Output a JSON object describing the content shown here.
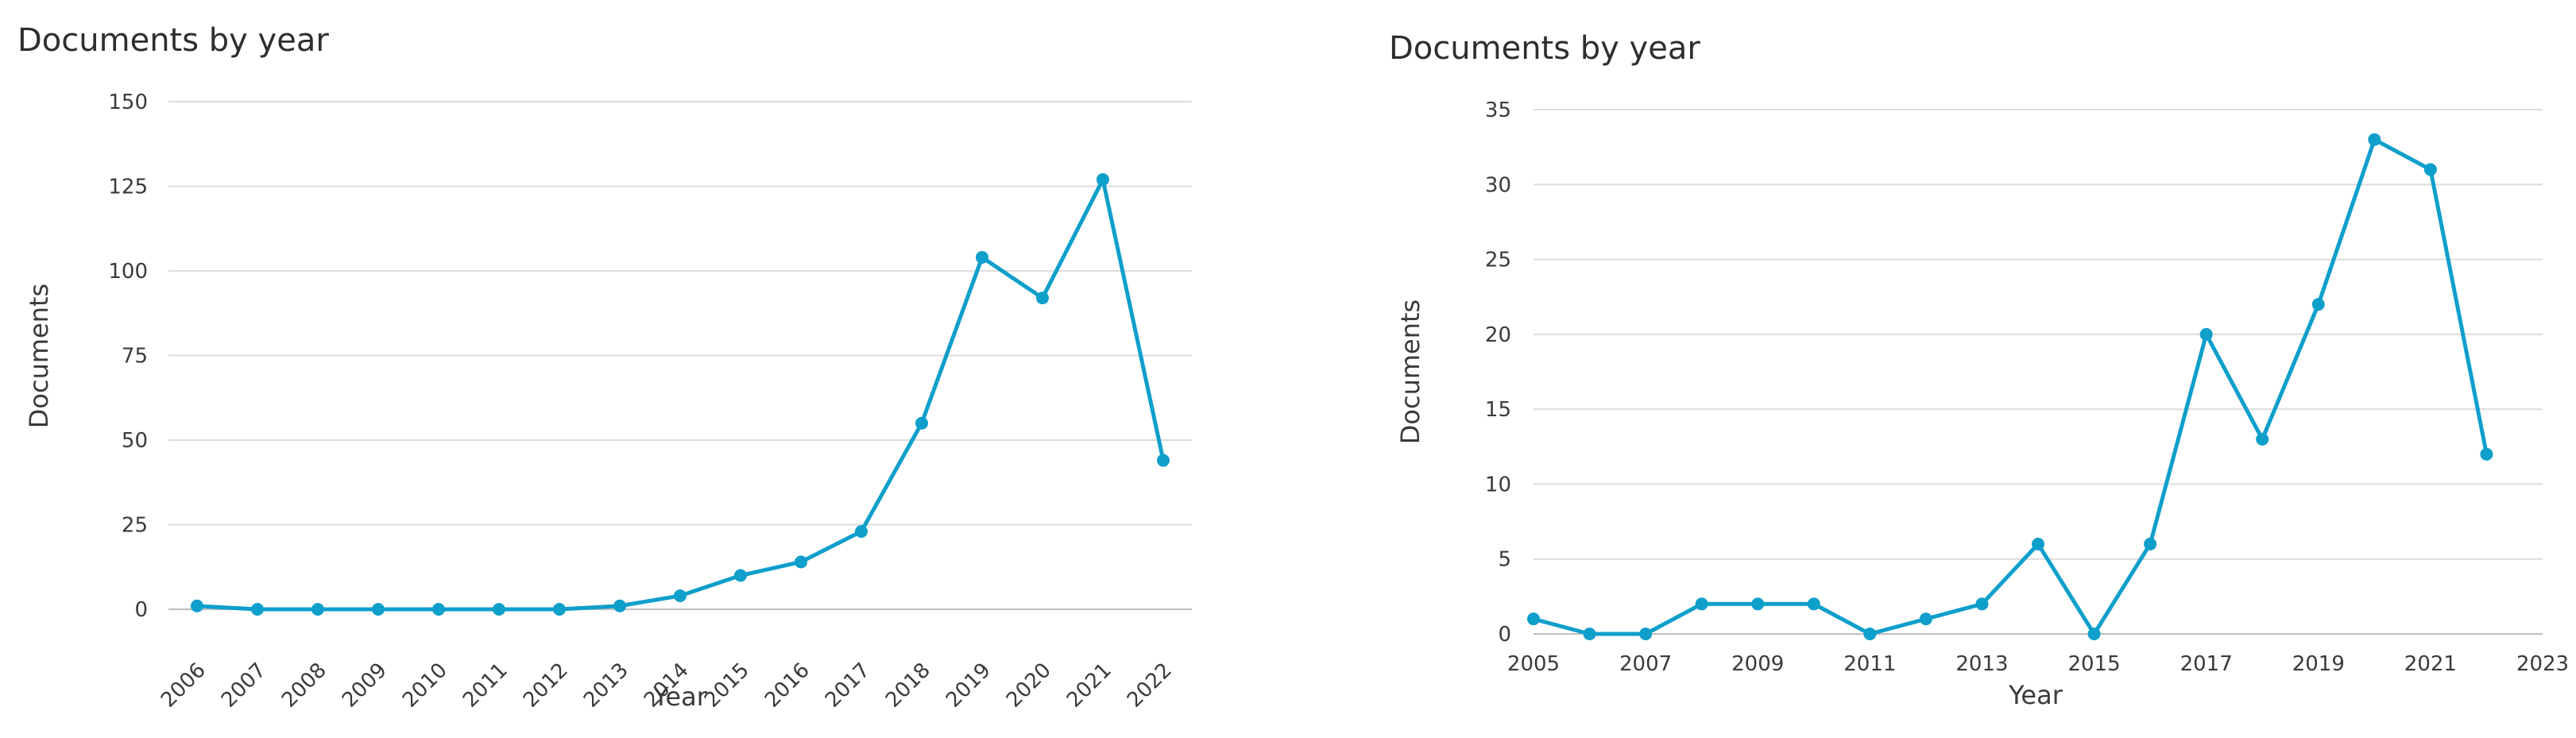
{
  "colors": {
    "series": "#0e9fcb",
    "grid": "#dcdcdc",
    "axis": "#bdbdbd",
    "text": "#3a3a3a"
  },
  "chart_data": [
    {
      "type": "line",
      "title": "Documents by year",
      "xlabel": "Year",
      "ylabel": "Documents",
      "ylim": [
        0,
        150
      ],
      "yticks": [
        0,
        25,
        50,
        75,
        100,
        125,
        150
      ],
      "x": [
        2006,
        2007,
        2008,
        2009,
        2010,
        2011,
        2012,
        2013,
        2014,
        2015,
        2016,
        2017,
        2018,
        2019,
        2020,
        2021,
        2022
      ],
      "xticks": [
        "2006",
        "2007",
        "2008",
        "2009",
        "2010",
        "2011",
        "2012",
        "2013",
        "2014",
        "2015",
        "2016",
        "2017",
        "2018",
        "2019",
        "2020",
        "2021",
        "2022"
      ],
      "xtick_rotation": "rotated",
      "grid": "horizontal",
      "series": [
        {
          "values": [
            1,
            0,
            0,
            0,
            0,
            0,
            0,
            1,
            4,
            10,
            14,
            23,
            55,
            104,
            92,
            127,
            44
          ]
        }
      ]
    },
    {
      "type": "line",
      "title": "Documents by year",
      "xlabel": "Year",
      "ylabel": "Documents",
      "ylim": [
        0,
        35
      ],
      "xlim": [
        2005,
        2023
      ],
      "yticks": [
        0,
        5,
        10,
        15,
        20,
        25,
        30,
        35
      ],
      "x": [
        2005,
        2006,
        2007,
        2008,
        2009,
        2010,
        2011,
        2012,
        2013,
        2014,
        2015,
        2016,
        2017,
        2018,
        2019,
        2020,
        2021,
        2022
      ],
      "xticks": [
        "2005",
        "2007",
        "2009",
        "2011",
        "2013",
        "2015",
        "2017",
        "2019",
        "2021",
        "2023"
      ],
      "xtick_rotation": "horizontal",
      "grid": "horizontal",
      "series": [
        {
          "values": [
            1,
            0,
            0,
            2,
            2,
            2,
            0,
            1,
            2,
            6,
            0,
            6,
            20,
            13,
            22,
            33,
            31,
            12
          ]
        }
      ]
    }
  ]
}
